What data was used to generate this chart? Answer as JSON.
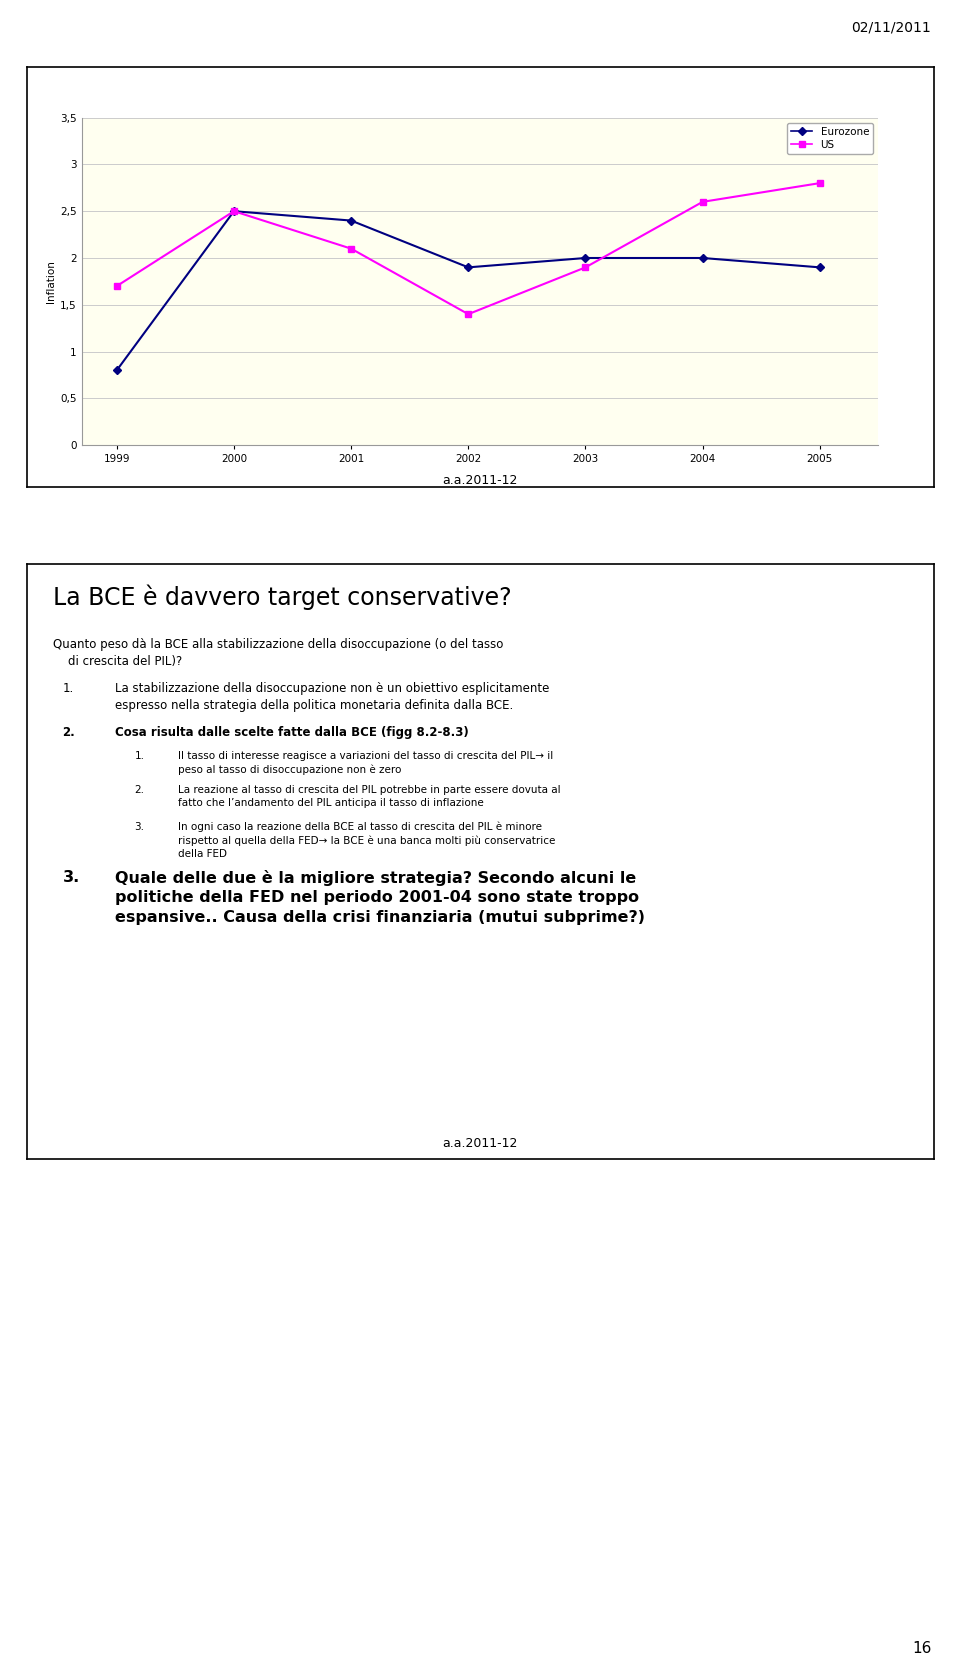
{
  "date_label": "02/11/2011",
  "page_number": "16",
  "footer_label": "a.a.2011-12",
  "chart": {
    "years": [
      1999,
      2000,
      2001,
      2002,
      2003,
      2004,
      2005
    ],
    "eurozone": [
      0.8,
      2.5,
      2.4,
      1.9,
      2.0,
      2.0,
      1.9
    ],
    "us": [
      1.7,
      2.5,
      2.1,
      1.4,
      1.9,
      2.6,
      2.8
    ],
    "eurozone_color": "#000080",
    "us_color": "#FF00FF",
    "bg_color": "#FFFFF0",
    "ylabel": "Inflation",
    "ylim": [
      0,
      3.5
    ],
    "yticks": [
      0,
      0.5,
      1,
      1.5,
      2,
      2.5,
      3,
      3.5
    ],
    "legend_eurozone": "Eurozone",
    "legend_us": "US",
    "grid_color": "#CCCCCC"
  },
  "slide2": {
    "title": "La BCE è davvero target conservative?",
    "intro": "Quanto peso dà la BCE alla stabilizzazione della disoccupazione (o del tasso\n    di crescita del PIL)?",
    "item1_num": "1.",
    "item1_text": "La stabilizzazione della disoccupazione non è un obiettivo esplicitamente\nespresso nella strategia della politica monetaria definita dalla BCE.",
    "item2_num": "2.",
    "item2_text": "Cosa risulta dalle scelte fatte dalla BCE (figg 8.2-8.3)",
    "sub1_num": "1.",
    "sub1_text": "Il tasso di interesse reagisce a variazioni del tasso di crescita del PIL→ il\npeso al tasso di disoccupazione non è zero",
    "sub2_num": "2.",
    "sub2_text": "La reazione al tasso di crescita del PIL potrebbe in parte essere dovuta al\nfatto che l’andamento del PIL anticipa il tasso di inflazione",
    "sub3_num": "3.",
    "sub3_text": "In ogni caso la reazione della BCE al tasso di crescita del PIL è minore\nrispetto al quella della FED→ la BCE è una banca molti più conservatrice\ndella FED",
    "item3_num": "3.",
    "item3_text": "Quale delle due è la migliore strategia? Secondo alcuni le\npolitiche della FED nel periodo 2001-04 sono state troppo\nespansive.. Causa della crisi finanziaria (mutui subprime?)",
    "footer": "a.a.2011-12"
  }
}
